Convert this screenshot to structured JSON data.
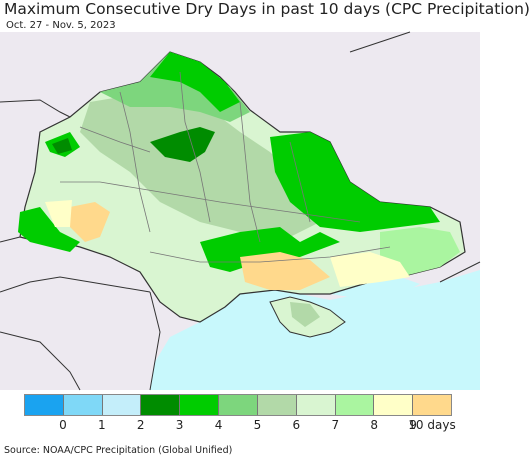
{
  "title": "Maximum Consecutive Dry Days in past 10 days (CPC Precipitation)",
  "date_range": "Oct. 27 - Nov. 5, 2023",
  "source": "Source: NOAA/CPC Precipitation (Global Unified)",
  "legend": {
    "labels": [
      "0",
      "1",
      "2",
      "3",
      "4",
      "5",
      "6",
      "7",
      "8",
      "9",
      "10 days"
    ],
    "colors": [
      "#1aa3f0",
      "#7fd8f7",
      "#c4eefa",
      "#008c00",
      "#00cc00",
      "#7dd67d",
      "#b2d9a8",
      "#d9f5d1",
      "#aaf5a0",
      "#ffffc8",
      "#ffd98c"
    ]
  },
  "colors": {
    "sea": "#c8f8fc",
    "land_outside": "#ede9f0",
    "border": "#333333",
    "oblast_border": "#777777"
  }
}
